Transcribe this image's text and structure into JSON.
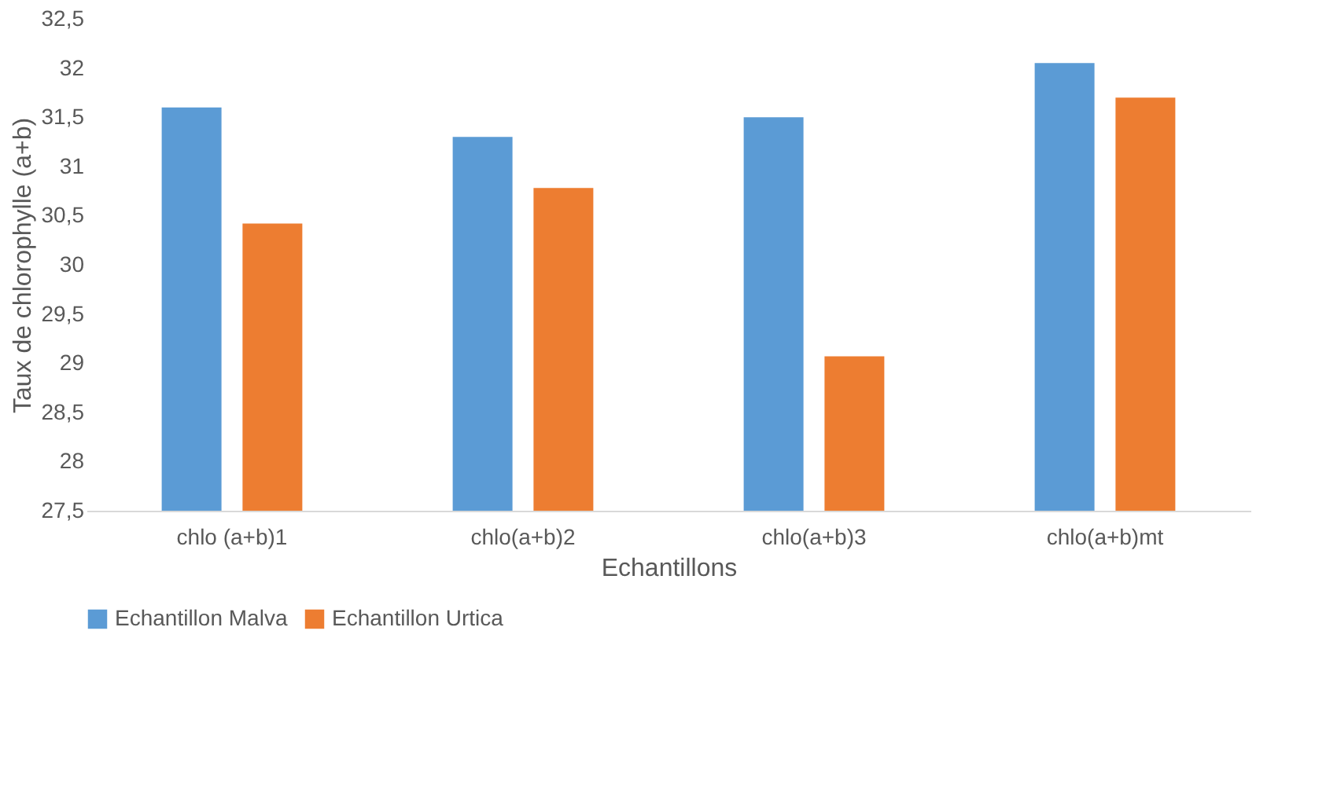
{
  "chart_data": {
    "type": "bar",
    "xlabel": "Echantillons",
    "ylabel": "Taux de chlorophylle (a+b)",
    "categories": [
      "chlo (a+b)1",
      "chlo(a+b)2",
      "chlo(a+b)3",
      "chlo(a+b)mt"
    ],
    "series": [
      {
        "name": "Echantillon Malva",
        "color": "#5b9bd5",
        "values": [
          31.6,
          31.3,
          31.5,
          32.05
        ]
      },
      {
        "name": "Echantillon Urtica",
        "color": "#ed7d31",
        "values": [
          30.42,
          30.78,
          29.07,
          31.7
        ]
      }
    ],
    "ylim": [
      27.5,
      32.5
    ],
    "yticks": [
      {
        "value": 27.5,
        "label": "27,5"
      },
      28,
      {
        "value": 28.5,
        "label": "28,5"
      },
      29,
      {
        "value": 29.5,
        "label": "29,5"
      },
      30,
      {
        "value": 30.5,
        "label": "30,5"
      },
      31,
      {
        "value": 31.5,
        "label": "31,5"
      },
      32,
      {
        "value": 32.5,
        "label": "32,5"
      }
    ],
    "grid": false,
    "legend": "bottom"
  }
}
